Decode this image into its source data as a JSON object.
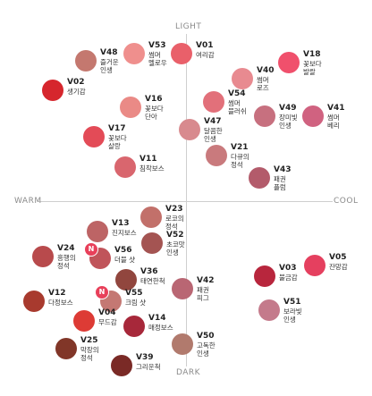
{
  "axes": {
    "top": "LIGHT",
    "bottom": "DARK",
    "left": "WARM",
    "right": "COOL"
  },
  "badge_label": "N",
  "shades": [
    {
      "code": "V48",
      "name": "즐거운\n인생",
      "color": "#c4786f"
    },
    {
      "code": "V53",
      "name": "썸머\n멜로우",
      "color": "#ef8f8d"
    },
    {
      "code": "V01",
      "name": "여리감",
      "color": "#e9606a"
    },
    {
      "code": "V18",
      "name": "꽃보다\n발랄",
      "color": "#f0506c"
    },
    {
      "code": "V40",
      "name": "썸머\n로즈",
      "color": "#e88a90"
    },
    {
      "code": "V02",
      "name": "생기감",
      "color": "#d6262d"
    },
    {
      "code": "V54",
      "name": "썸머\n블러쉬",
      "color": "#e2707a"
    },
    {
      "code": "V16",
      "name": "꽃보다\n단아",
      "color": "#ea8a86"
    },
    {
      "code": "V49",
      "name": "장미빛\n인생",
      "color": "#c7707f"
    },
    {
      "code": "V41",
      "name": "썸머\n베리",
      "color": "#d06280"
    },
    {
      "code": "V47",
      "name": "달콤한\n인생",
      "color": "#d88a8e"
    },
    {
      "code": "V17",
      "name": "꽃보다\n살랑",
      "color": "#e34b57"
    },
    {
      "code": "V21",
      "name": "다큐의\n정석",
      "color": "#c97a7d"
    },
    {
      "code": "V11",
      "name": "침착보스",
      "color": "#d9666e"
    },
    {
      "code": "V43",
      "name": "패권\n플럼",
      "color": "#b35b6b"
    },
    {
      "code": "V23",
      "name": "로코의\n정석",
      "color": "#c2706a"
    },
    {
      "code": "V13",
      "name": "진지보스",
      "color": "#bd6465"
    },
    {
      "code": "V52",
      "name": "초코맛\n인생",
      "color": "#a45452"
    },
    {
      "code": "V24",
      "name": "흥행의\n정석",
      "color": "#b84a4c"
    },
    {
      "code": "V56",
      "name": "더블 샷",
      "color": "#c0545a",
      "new": true
    },
    {
      "code": "V36",
      "name": "태연한척",
      "color": "#91463e"
    },
    {
      "code": "V05",
      "name": "잔망감",
      "color": "#e5405f"
    },
    {
      "code": "V03",
      "name": "불금감",
      "color": "#b8263d"
    },
    {
      "code": "V42",
      "name": "패권\n피그",
      "color": "#b96673"
    },
    {
      "code": "V12",
      "name": "다정보스",
      "color": "#a83a2e"
    },
    {
      "code": "V55",
      "name": "크림 샷",
      "color": "#c47873",
      "new": true
    },
    {
      "code": "V51",
      "name": "보라빛\n인생",
      "color": "#c47a8b"
    },
    {
      "code": "V04",
      "name": "무드감",
      "color": "#dd3b35"
    },
    {
      "code": "V14",
      "name": "매정보스",
      "color": "#a7283a"
    },
    {
      "code": "V50",
      "name": "고독한\n인생",
      "color": "#b17a6d"
    },
    {
      "code": "V25",
      "name": "막장의\n정석",
      "color": "#813628"
    },
    {
      "code": "V39",
      "name": "그리운척",
      "color": "#7a2a26"
    }
  ]
}
